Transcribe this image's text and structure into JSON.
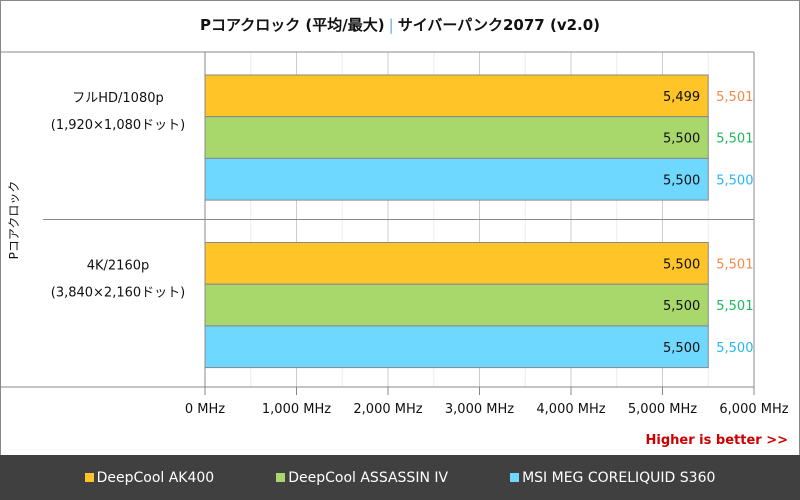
{
  "chart_data": {
    "type": "bar",
    "orientation": "horizontal",
    "title": "Pコアクロック (平均/最大)",
    "subtitle": "サイバーパンク2077 (v2.0)",
    "ylabel": "Pコアクロック",
    "categories": [
      {
        "line1": "フルHD/1080p",
        "line2": "(1,920×1,080ドット)"
      },
      {
        "line1": "4K/2160p",
        "line2": "(3,840×2,160ドット)"
      }
    ],
    "series": [
      {
        "name": "DeepCool AK400",
        "color": "#fec428",
        "max_color": "#f5894a",
        "values": [
          5499,
          5500
        ],
        "max_values": [
          5501,
          5501
        ]
      },
      {
        "name": "DeepCool ASSASSIN IV",
        "color": "#a8d86c",
        "max_color": "#1db85c",
        "values": [
          5500,
          5500
        ],
        "max_values": [
          5501,
          5501
        ]
      },
      {
        "name": "MSI MEG CORELIQUID S360",
        "color": "#6fd8fe",
        "max_color": "#29b5f0",
        "values": [
          5500,
          5500
        ],
        "max_values": [
          5500,
          5500
        ]
      }
    ],
    "value_labels": [
      [
        "5,499",
        "5,500",
        "5,500"
      ],
      [
        "5,500",
        "5,500",
        "5,500"
      ]
    ],
    "max_labels": [
      [
        "5,501",
        "5,501",
        "5,500"
      ],
      [
        "5,501",
        "5,501",
        "5,500"
      ]
    ],
    "xlim": [
      0,
      6000
    ],
    "xticks": [
      0,
      1000,
      2000,
      3000,
      4000,
      5000,
      6000
    ],
    "xtick_labels": [
      "0 MHz",
      "1,000 MHz",
      "2,000 MHz",
      "3,000 MHz",
      "4,000 MHz",
      "5,000 MHz",
      "6,000 MHz"
    ],
    "grid": true,
    "legend_position": "bottom",
    "note": "Higher is better >>",
    "note_color": "#cc0000"
  }
}
